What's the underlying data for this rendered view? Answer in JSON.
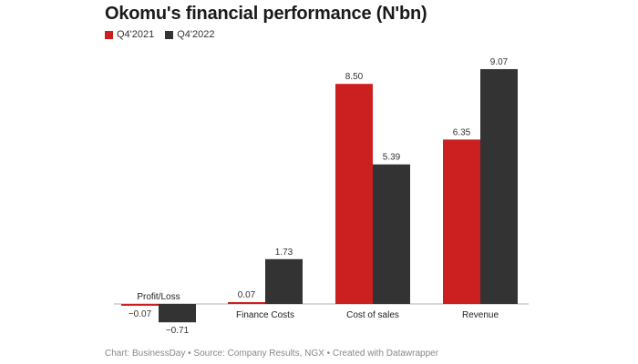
{
  "chart_data": {
    "type": "bar",
    "title": "Okomu's financial performance (N'bn)",
    "categories": [
      "Profit/Loss",
      "Finance Costs",
      "Cost of sales",
      "Revenue"
    ],
    "series": [
      {
        "name": "Q4'2021",
        "color": "#cc1f1f",
        "values": [
          -0.07,
          0.07,
          8.5,
          6.35
        ],
        "labels": [
          "−0.07",
          "0.07",
          "8.50",
          "6.35"
        ]
      },
      {
        "name": "Q4'2022",
        "color": "#333333",
        "values": [
          -0.71,
          1.73,
          5.39,
          9.07
        ],
        "labels": [
          "−0.71",
          "1.73",
          "5.39",
          "9.07"
        ]
      }
    ],
    "xlabel": "",
    "ylabel": "",
    "ylim": [
      -0.9,
      9.5
    ],
    "grid": false,
    "legend": "top-left"
  },
  "footer": "Chart: BusinessDay • Source: Company Results, NGX • Created with Datawrapper"
}
